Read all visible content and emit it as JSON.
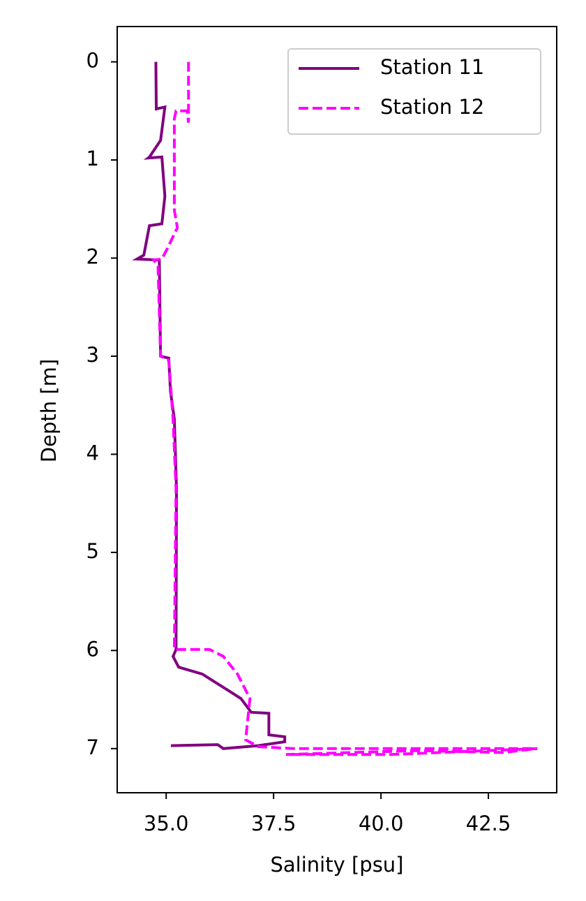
{
  "chart_data": {
    "type": "line",
    "xlabel": "Salinity [psu]",
    "ylabel": "Depth [m]",
    "xlim": [
      33.86,
      44.09
    ],
    "ylim": [
      7.45,
      -0.36
    ],
    "xticks": [
      {
        "value": 35,
        "label": "35.0"
      },
      37.5,
      {
        "value": 40,
        "label": "40.0"
      },
      42.5
    ],
    "yticks": [
      0,
      1,
      2,
      3,
      4,
      5,
      6,
      7
    ],
    "legend": "upper right",
    "series": [
      {
        "name": "Station 11",
        "color": "#800080",
        "linestyle": "solid",
        "x": [
          34.76,
          34.77,
          34.97,
          34.87,
          34.61,
          34.58,
          34.9,
          34.97,
          34.9,
          34.61,
          34.48,
          34.32,
          34.84,
          34.87,
          35.06,
          35.1,
          35.19,
          35.24,
          35.23,
          35.16,
          35.29,
          35.84,
          36.49,
          36.74,
          36.98,
          37.39,
          37.39,
          37.76,
          37.76,
          37.14,
          36.33,
          36.2,
          35.11
        ],
        "y": [
          0,
          0.48,
          0.46,
          0.8,
          0.97,
          0.98,
          0.97,
          1.37,
          1.65,
          1.67,
          1.97,
          2.01,
          2.02,
          3.0,
          3.02,
          3.36,
          3.64,
          4.35,
          5.99,
          6.06,
          6.17,
          6.24,
          6.42,
          6.49,
          6.63,
          6.64,
          6.86,
          6.88,
          6.93,
          6.97,
          7.0,
          6.96,
          6.97
        ]
      },
      {
        "name": "Station 12",
        "color": "#ff00ff",
        "linestyle": "dashed",
        "x": [
          35.52,
          35.52,
          35.49,
          35.23,
          35.19,
          35.19,
          35.26,
          35.03,
          34.9,
          34.71,
          34.81,
          34.87,
          35.06,
          35.16,
          35.23,
          35.19,
          36.01,
          36.33,
          36.66,
          36.95,
          36.85,
          37.14,
          37.95,
          43.64,
          40.23,
          37.79,
          40.88,
          42.82,
          43.64
        ],
        "y": [
          0,
          0.62,
          0.5,
          0.5,
          0.58,
          1.51,
          1.69,
          1.9,
          2.01,
          2.02,
          2.08,
          3.0,
          3.04,
          3.64,
          4.35,
          5.99,
          5.99,
          6.06,
          6.24,
          6.49,
          6.91,
          6.98,
          7.0,
          7.0,
          7.06,
          7.06,
          7.02,
          7.04,
          7.0
        ]
      }
    ]
  }
}
